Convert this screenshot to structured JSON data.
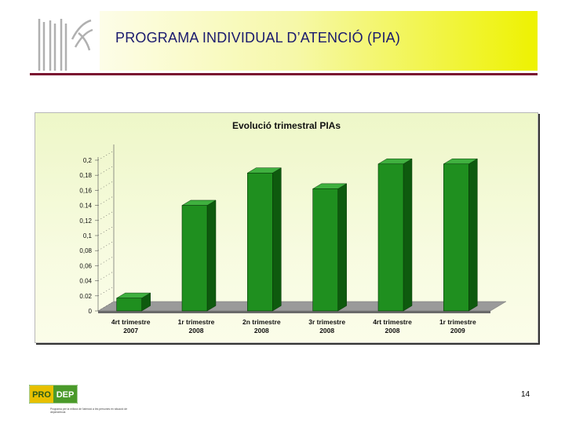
{
  "header": {
    "title": "PROGRAMA INDIVIDUAL D’ATENCIÓ (PIA)"
  },
  "footer": {
    "page_number": "14",
    "logo_text_left": "PRO",
    "logo_text_right": "DEP",
    "logo_subtext": "Programa per la millora de l'atenció a les persones en situació de dependència"
  },
  "colors": {
    "bar": "#1f8f1f",
    "bar_dark": "#0e5a0e",
    "bar_top": "#3fb03f",
    "header_accent": "#7a1230",
    "logo_green": "#4a9a2a",
    "logo_yellow": "#e8c000"
  },
  "chart_data": {
    "type": "bar",
    "title": "Evolució trimestral PIAs",
    "categories": [
      [
        "4rt trimestre",
        "2007"
      ],
      [
        "1r trimestre",
        "2008"
      ],
      [
        "2n trimestre",
        "2008"
      ],
      [
        "3r trimestre",
        "2008"
      ],
      [
        "4rt trimestre",
        "2008"
      ],
      [
        "1r trimestre",
        "2009"
      ]
    ],
    "values": [
      0.017,
      0.14,
      0.183,
      0.162,
      0.195,
      0.195
    ],
    "yticks": [
      "0",
      "0.02",
      "0.04",
      "0,06",
      "0,08",
      "0,1",
      "0,12",
      "0.14",
      "0,16",
      "0,18",
      "0,2"
    ],
    "ylim": [
      0,
      0.2
    ],
    "grid": false,
    "legend": "none",
    "style": "3d"
  }
}
